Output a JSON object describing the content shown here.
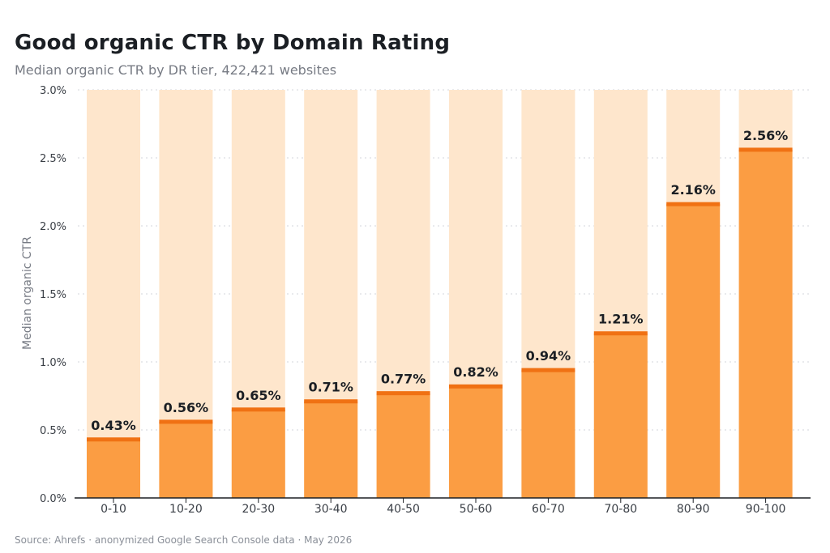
{
  "chart_data": {
    "type": "bar",
    "title": "Good organic CTR by Domain Rating",
    "subtitle": "Median organic CTR by DR tier, 422,421 websites",
    "xlabel": "",
    "ylabel": "Median organic CTR",
    "categories": [
      "0-10",
      "10-20",
      "20-30",
      "30-40",
      "40-50",
      "50-60",
      "60-70",
      "70-80",
      "80-90",
      "90-100"
    ],
    "values": [
      0.43,
      0.56,
      0.65,
      0.71,
      0.77,
      0.82,
      0.94,
      1.21,
      2.16,
      2.56
    ],
    "data_labels": [
      "0.43%",
      "0.56%",
      "0.65%",
      "0.71%",
      "0.77%",
      "0.82%",
      "0.94%",
      "1.21%",
      "2.16%",
      "2.56%"
    ],
    "ylim": [
      0,
      3.0
    ],
    "yticks": [
      0.0,
      0.5,
      1.0,
      1.5,
      2.0,
      2.5,
      3.0
    ],
    "ytick_labels": [
      "0.0%",
      "0.5%",
      "1.0%",
      "1.5%",
      "2.0%",
      "2.5%",
      "3.0%"
    ],
    "grid": "horizontal dotted",
    "legend": "none",
    "colors": {
      "bar": "#fb9d43",
      "bar_cap": "#f07113",
      "track": "#fee6cc",
      "grid": "#d3d6db",
      "axis": "#1b1f24",
      "tick_text": "#3a3f46",
      "label_text": "#1b1f24"
    }
  },
  "source": "Source: Ahrefs · anonymized Google Search Console data · May 2026"
}
